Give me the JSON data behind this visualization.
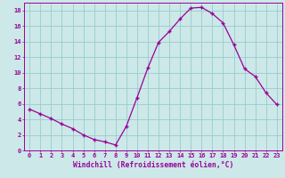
{
  "x": [
    0,
    1,
    2,
    3,
    4,
    5,
    6,
    7,
    8,
    9,
    10,
    11,
    12,
    13,
    14,
    15,
    16,
    17,
    18,
    19,
    20,
    21,
    22,
    23
  ],
  "y": [
    5.3,
    4.7,
    4.1,
    3.4,
    2.8,
    2.0,
    1.4,
    1.1,
    0.7,
    3.1,
    6.8,
    10.6,
    13.9,
    15.3,
    16.9,
    18.3,
    18.4,
    17.6,
    16.4,
    13.6,
    10.5,
    9.5,
    7.4,
    5.9
  ],
  "line_color": "#990099",
  "marker": "+",
  "marker_size": 3,
  "marker_linewidth": 1.0,
  "line_width": 0.9,
  "bg_color": "#cce8e8",
  "grid_color": "#99cccc",
  "xlabel": "Windchill (Refroidissement éolien,°C)",
  "xlabel_color": "#990099",
  "tick_color": "#990099",
  "ylim": [
    0,
    19
  ],
  "xlim": [
    -0.5,
    23.5
  ],
  "yticks": [
    0,
    2,
    4,
    6,
    8,
    10,
    12,
    14,
    16,
    18
  ],
  "xticks": [
    0,
    1,
    2,
    3,
    4,
    5,
    6,
    7,
    8,
    9,
    10,
    11,
    12,
    13,
    14,
    15,
    16,
    17,
    18,
    19,
    20,
    21,
    22,
    23
  ],
  "spine_color": "#990099",
  "tick_fontsize": 5.0,
  "xlabel_fontsize": 5.8
}
